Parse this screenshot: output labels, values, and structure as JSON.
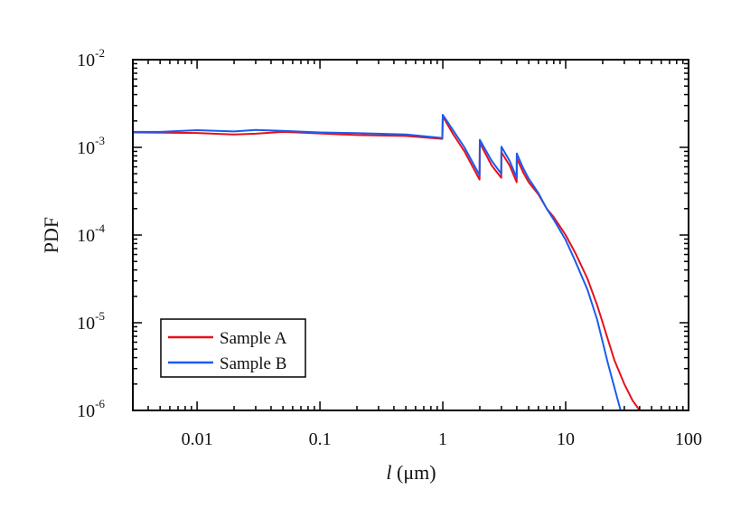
{
  "chart_data": {
    "type": "line",
    "title": "",
    "xlabel": {
      "italic": "l",
      "rest": " (μm)"
    },
    "ylabel": "PDF",
    "x_scale": "log",
    "y_scale": "log",
    "xlim": [
      0.003,
      100
    ],
    "ylim": [
      1e-06,
      0.01
    ],
    "grid": false,
    "legend_position": "bottom-left",
    "x_ticks": [
      {
        "value": 0.01,
        "label": "0.01"
      },
      {
        "value": 0.1,
        "label": "0.1"
      },
      {
        "value": 1,
        "label": "1"
      },
      {
        "value": 10,
        "label": "10"
      },
      {
        "value": 100,
        "label": "100"
      }
    ],
    "y_ticks": [
      {
        "value": 1e-06,
        "base": "10",
        "exp": "-6"
      },
      {
        "value": 1e-05,
        "base": "10",
        "exp": "-5"
      },
      {
        "value": 0.0001,
        "base": "10",
        "exp": "-4"
      },
      {
        "value": 0.001,
        "base": "10",
        "exp": "-3"
      },
      {
        "value": 0.01,
        "base": "10",
        "exp": "-2"
      }
    ],
    "series": [
      {
        "name": "Sample A",
        "color": "#e8101a",
        "x": [
          0.003,
          0.005,
          0.01,
          0.02,
          0.03,
          0.05,
          0.1,
          0.2,
          0.5,
          0.99,
          1.0,
          1.2,
          1.5,
          1.99,
          2.0,
          2.5,
          2.99,
          3.0,
          3.5,
          3.99,
          4.0,
          4.5,
          5.0,
          6.0,
          7.0,
          8.0,
          10.0,
          12.0,
          15.0,
          18.0,
          20.0,
          22.0,
          25.0,
          30.0,
          35.0,
          40.0
        ],
        "y": [
          0.00148,
          0.00147,
          0.00146,
          0.0014,
          0.00143,
          0.0015,
          0.00144,
          0.00138,
          0.00135,
          0.00125,
          0.00225,
          0.00145,
          0.0009,
          0.00043,
          0.00112,
          0.00062,
          0.00045,
          0.00088,
          0.00062,
          0.0004,
          0.00075,
          0.00052,
          0.0004,
          0.00029,
          0.0002,
          0.00016,
          0.0001,
          6.2e-05,
          3.2e-05,
          1.6e-05,
          1e-05,
          6.5e-06,
          3.7e-06,
          2e-06,
          1.3e-06,
          1e-06
        ]
      },
      {
        "name": "Sample B",
        "color": "#1a5cf0",
        "x": [
          0.003,
          0.005,
          0.01,
          0.02,
          0.03,
          0.05,
          0.1,
          0.2,
          0.5,
          0.99,
          1.0,
          1.2,
          1.5,
          1.99,
          2.0,
          2.5,
          2.99,
          3.0,
          3.5,
          3.99,
          4.0,
          4.5,
          5.0,
          6.0,
          7.0,
          8.0,
          10.0,
          12.0,
          15.0,
          18.0,
          20.0,
          22.0,
          25.0,
          28.0
        ],
        "y": [
          0.0015,
          0.0015,
          0.00157,
          0.00152,
          0.00158,
          0.00154,
          0.00148,
          0.00145,
          0.0014,
          0.00128,
          0.00235,
          0.0016,
          0.001,
          0.00048,
          0.00122,
          0.0007,
          0.0005,
          0.00102,
          0.0007,
          0.00045,
          0.00085,
          0.00058,
          0.00044,
          0.0003,
          0.0002,
          0.00015,
          8.8e-05,
          5e-05,
          2.4e-05,
          1.1e-05,
          6e-06,
          3.5e-06,
          1.8e-06,
          1e-06
        ]
      }
    ]
  }
}
